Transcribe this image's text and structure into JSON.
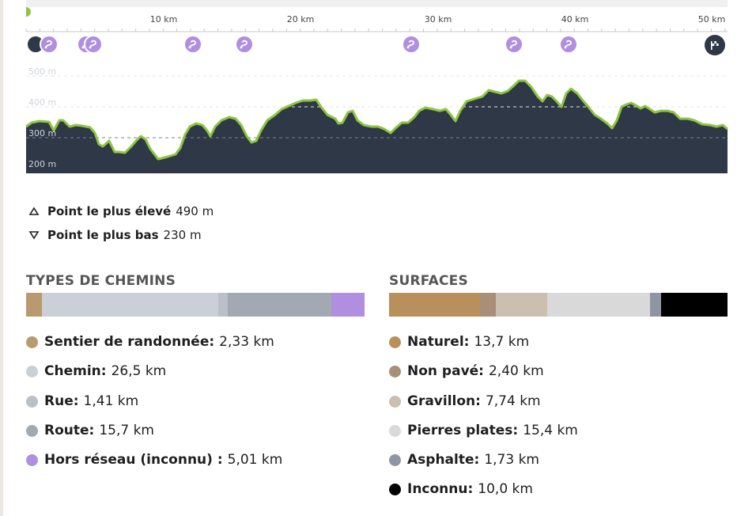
{
  "profile": {
    "x_ticks": [
      "10 km",
      "20 km",
      "30 km",
      "40 km",
      "50 km"
    ],
    "elevation_ticks": [
      "500 m",
      "400 m",
      "300 m",
      "200 m"
    ],
    "colors": {
      "fill": "#2f3847",
      "line": "#8dc63f",
      "line_alt": "#c9a45c",
      "waypoint": "#b08fe0"
    },
    "waypoint_icon": "route-squiggle-icon",
    "finish_icon": "finish-flag-icon"
  },
  "stats": {
    "highest": {
      "label": "Point le plus élevé",
      "value": "490 m"
    },
    "lowest": {
      "label": "Point le plus bas",
      "value": "230 m"
    }
  },
  "way_types": {
    "title": "TYPES DE CHEMINS",
    "items": [
      {
        "name": "Sentier de randonnée:",
        "value": "2,33 km",
        "color": "#b89a6e",
        "share": 0.046
      },
      {
        "name": "Chemin:",
        "value": "26,5 km",
        "color": "#cbcfd6",
        "share": 0.521
      },
      {
        "name": "Rue:",
        "value": "1,41 km",
        "color": "#bbc0c8",
        "share": 0.028
      },
      {
        "name": "Route:",
        "value": "15,7 km",
        "color": "#a3a9b3",
        "share": 0.307
      },
      {
        "name": "Hors réseau (inconnu) :",
        "value": "5,01 km",
        "color": "#b08fe0",
        "share": 0.098
      }
    ]
  },
  "surfaces": {
    "title": "SURFACES",
    "items": [
      {
        "name": "Naturel:",
        "value": "13,7 km",
        "color": "#b9905c",
        "share": 0.269
      },
      {
        "name": "Non pavé:",
        "value": "2,40 km",
        "color": "#a98f78",
        "share": 0.047
      },
      {
        "name": "Gravillon:",
        "value": "7,74 km",
        "color": "#cbc0b0",
        "share": 0.152
      },
      {
        "name": "Pierres plates:",
        "value": "15,4 km",
        "color": "#d9d9d9",
        "share": 0.302
      },
      {
        "name": "Asphalte:",
        "value": "1,73 km",
        "color": "#8f96a3",
        "share": 0.034
      },
      {
        "name": "Inconnu:",
        "value": "10,0 km",
        "color": "#000000",
        "share": 0.196
      }
    ]
  }
}
